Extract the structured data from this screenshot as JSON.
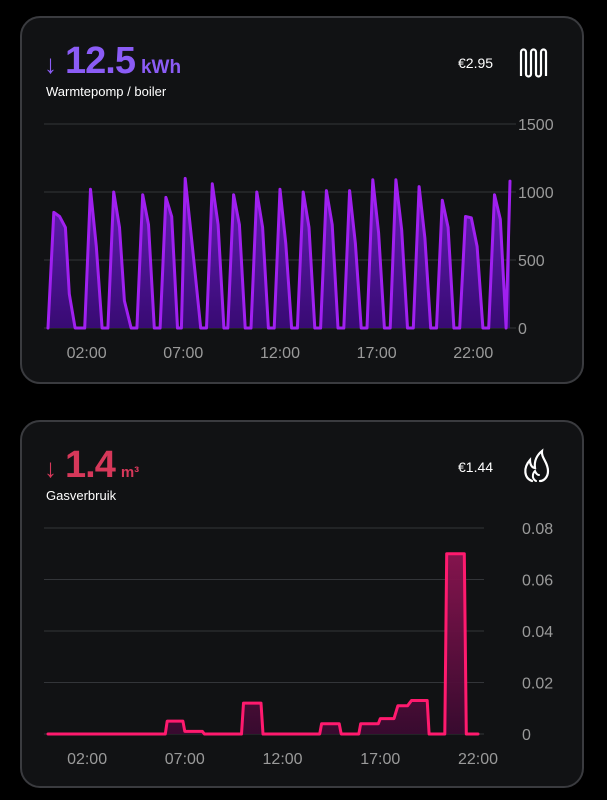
{
  "electric": {
    "arrow": "↓",
    "value": "12.5",
    "unit": "kWh",
    "label": "Warmtepomp / boiler",
    "cost": "€2.95",
    "icon": "radiator-icon",
    "accent": "#8b5cf6",
    "line_color": "#a020f0",
    "fill_top": "#6a1fc0",
    "fill_bottom": "#3a0a78"
  },
  "gas": {
    "arrow": "↓",
    "value": "1.4",
    "unit": "m³",
    "label": "Gasverbruik",
    "cost": "€1.44",
    "icon": "flame-icon",
    "accent": "#d6385a",
    "line_color": "#ff1a6e",
    "fill_top": "#8a1450",
    "fill_bottom": "#3a0a30"
  },
  "chart_data": [
    {
      "type": "area",
      "ylim": [
        0,
        1500
      ],
      "yticks": [
        "0",
        "500",
        "1000",
        "1500"
      ],
      "xticks": [
        "02:00",
        "07:00",
        "12:00",
        "17:00",
        "22:00"
      ],
      "x_hours": [
        0,
        0.3,
        0.6,
        0.9,
        1.1,
        1.4,
        1.9,
        2.2,
        2.5,
        2.8,
        3.1,
        3.4,
        3.7,
        3.95,
        4.3,
        4.6,
        4.9,
        5.2,
        5.5,
        5.8,
        6.1,
        6.4,
        6.7,
        6.9,
        7.1,
        7.35,
        7.6,
        7.9,
        8.2,
        8.5,
        8.8,
        9.1,
        9.3,
        9.6,
        9.9,
        10.2,
        10.5,
        10.8,
        11.1,
        11.4,
        11.7,
        12.0,
        12.3,
        12.6,
        12.9,
        13.2,
        13.5,
        13.8,
        14.1,
        14.4,
        14.7,
        15.0,
        15.3,
        15.6,
        15.9,
        16.2,
        16.5,
        16.8,
        17.1,
        17.4,
        17.7,
        18.0,
        18.3,
        18.6,
        18.9,
        19.2,
        19.5,
        19.8,
        20.1,
        20.4,
        20.7,
        21.0,
        21.3,
        21.6,
        21.9,
        22.2,
        22.5,
        22.8,
        23.1,
        23.4,
        23.7,
        23.9
      ],
      "values": [
        0,
        850,
        820,
        740,
        250,
        0,
        0,
        1020,
        600,
        0,
        0,
        1000,
        740,
        200,
        0,
        0,
        980,
        760,
        0,
        0,
        960,
        820,
        0,
        0,
        1100,
        760,
        420,
        0,
        0,
        1060,
        760,
        0,
        0,
        980,
        760,
        0,
        0,
        1000,
        740,
        0,
        0,
        1020,
        620,
        0,
        0,
        1000,
        740,
        0,
        0,
        1010,
        760,
        0,
        0,
        1010,
        620,
        0,
        0,
        1090,
        700,
        0,
        0,
        1090,
        720,
        0,
        0,
        1040,
        660,
        0,
        0,
        940,
        740,
        0,
        0,
        820,
        810,
        600,
        0,
        0,
        980,
        800,
        0,
        1080
      ]
    },
    {
      "type": "area",
      "ylim": [
        0,
        0.08
      ],
      "yticks": [
        "0",
        "0.02",
        "0.04",
        "0.06",
        "0.08"
      ],
      "xticks": [
        "02:00",
        "07:00",
        "12:00",
        "17:00",
        "22:00"
      ],
      "x_hours": [
        0,
        6.0,
        6.1,
        6.9,
        7.0,
        7.9,
        8.0,
        9.9,
        10.0,
        10.9,
        11.0,
        13.9,
        14.0,
        14.9,
        15.0,
        15.9,
        16.0,
        16.9,
        17.0,
        17.7,
        17.9,
        18.4,
        18.6,
        19.4,
        19.5,
        20.3,
        20.4,
        21.3,
        21.4,
        22.0
      ],
      "values": [
        0,
        0,
        0.005,
        0.005,
        0.001,
        0.001,
        0,
        0,
        0.012,
        0.012,
        0,
        0,
        0.004,
        0.004,
        0,
        0,
        0.004,
        0.004,
        0.006,
        0.006,
        0.011,
        0.011,
        0.013,
        0.013,
        0,
        0,
        0.07,
        0.07,
        0,
        0
      ]
    }
  ]
}
